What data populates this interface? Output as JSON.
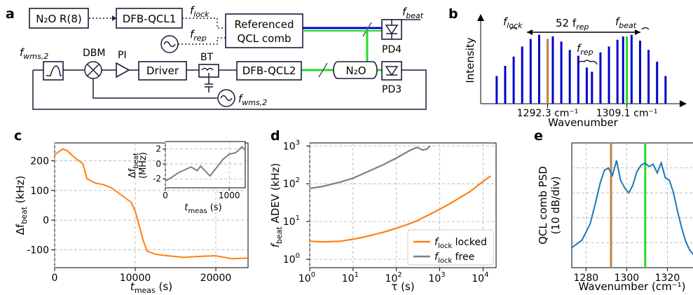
{
  "colors": {
    "orange": "#ff7f0e",
    "gray": "#7f7f7f",
    "blue": "#1f77b4",
    "navy": "#0000cc",
    "green": "#22dd22",
    "brown": "#c08040"
  },
  "panels": {
    "a": "a",
    "b": "b",
    "c": "c",
    "d": "d",
    "e": "e"
  },
  "schematic": {
    "n2o_ref": "N₂O R(8)",
    "qcl1": "DFB-QCL1",
    "comb_line1": "Referenced",
    "comb_line2": "QCL comb",
    "f_lock": "f",
    "f_lock_sub": "lock",
    "f_rep": "f",
    "f_rep_sub": "rep",
    "f_beat": "f",
    "f_beat_sub": "beat",
    "pd4": "PD4",
    "pd3": "PD3",
    "f_wms": "f",
    "f_wms_sub": "wms,2",
    "dbm": "DBM",
    "pi": "PI",
    "driver": "Driver",
    "bt": "BT",
    "qcl2": "DFB-QCL2",
    "n2o_cell": "N₂O",
    "f_wms2": "f",
    "f_wms2_sub": "wms,2"
  },
  "chart_data": [
    {
      "panel": "b",
      "type": "bar",
      "ylabel": "Intensity",
      "xlabel": "Wavenumber",
      "ticks": [
        {
          "x": 1292.3,
          "label": "1292.3 cm⁻¹"
        },
        {
          "x": 1309.1,
          "label": "1309.1 cm⁻¹"
        }
      ],
      "xlim": [
        1279,
        1320
      ],
      "ylim": [
        0,
        1
      ],
      "lines": [
        {
          "x": 1281.5,
          "h": 0.33,
          "c": "navy"
        },
        {
          "x": 1283.3,
          "h": 0.45,
          "c": "navy"
        },
        {
          "x": 1285.1,
          "h": 0.56,
          "c": "navy"
        },
        {
          "x": 1286.9,
          "h": 0.68,
          "c": "navy"
        },
        {
          "x": 1288.7,
          "h": 0.77,
          "c": "navy"
        },
        {
          "x": 1290.5,
          "h": 0.82,
          "c": "navy"
        },
        {
          "x": 1292.3,
          "h": 0.77,
          "c": "brown"
        },
        {
          "x": 1293.4,
          "h": 0.8,
          "c": "navy"
        },
        {
          "x": 1295.2,
          "h": 0.74,
          "c": "navy"
        },
        {
          "x": 1297.0,
          "h": 0.64,
          "c": "navy"
        },
        {
          "x": 1298.8,
          "h": 0.57,
          "c": "navy"
        },
        {
          "x": 1300.6,
          "h": 0.43,
          "c": "navy"
        },
        {
          "x": 1301.7,
          "h": 0.38,
          "c": "navy"
        },
        {
          "x": 1303.5,
          "h": 0.61,
          "c": "navy"
        },
        {
          "x": 1305.3,
          "h": 0.68,
          "c": "navy"
        },
        {
          "x": 1307.1,
          "h": 0.76,
          "c": "navy"
        },
        {
          "x": 1308.3,
          "h": 0.8,
          "c": "navy"
        },
        {
          "x": 1309.1,
          "h": 0.8,
          "c": "green"
        },
        {
          "x": 1310.1,
          "h": 0.82,
          "c": "navy"
        },
        {
          "x": 1311.9,
          "h": 0.75,
          "c": "navy"
        },
        {
          "x": 1313.7,
          "h": 0.64,
          "c": "navy"
        },
        {
          "x": 1315.5,
          "h": 0.5,
          "c": "navy"
        },
        {
          "x": 1317.3,
          "h": 0.33,
          "c": "navy"
        }
      ],
      "annotations": {
        "f_lock": "f",
        "f_lock_sub": "lock",
        "f_beat": "f",
        "f_beat_sub": "beat",
        "span": "52 f",
        "span_sub": "rep",
        "frep": "f",
        "frep_sub": "rep"
      }
    },
    {
      "panel": "c",
      "type": "line",
      "xlabel": "t",
      "xlabel_sub": "meas",
      "xlabel_unit": " (s)",
      "ylabel": "Δf",
      "ylabel_sub": "beat",
      "ylabel_unit": " (kHz)",
      "xlim": [
        0,
        24000
      ],
      "ylim": [
        -160,
        260
      ],
      "xticks": [
        0,
        10000,
        20000
      ],
      "yticks": [
        -100,
        0,
        100,
        200
      ],
      "yticklabels": [
        "-100",
        "0",
        "100",
        "200"
      ],
      "x": [
        0,
        1000,
        1500,
        2500,
        3500,
        4000,
        5000,
        6000,
        7000,
        8000,
        9000,
        9500,
        10000,
        10500,
        11000,
        11500,
        12500,
        14000,
        16000,
        18000,
        20000,
        22000,
        24000
      ],
      "y": [
        220,
        240,
        235,
        210,
        190,
        140,
        125,
        120,
        110,
        90,
        70,
        60,
        30,
        -20,
        -70,
        -105,
        -115,
        -120,
        -125,
        -122,
        -120,
        -130,
        -128
      ],
      "inset": {
        "xlabel": "t",
        "xlabel_sub": "meas",
        "xlabel_unit": " (s)",
        "ylabel": "Δf",
        "ylabel_sub": "beat",
        "ylabel_unit": "(MHz)",
        "xlim": [
          0,
          1250
        ],
        "ylim": [
          -3.2,
          3.0
        ],
        "xticks": [
          0,
          1000
        ],
        "yticks": [
          -2,
          0,
          2
        ],
        "x": [
          0,
          100,
          200,
          300,
          400,
          500,
          550,
          650,
          700,
          800,
          900,
          1000,
          1100,
          1200,
          1250
        ],
        "y": [
          -2.3,
          -1.8,
          -1.2,
          -0.8,
          -0.4,
          -0.9,
          -0.3,
          -1.2,
          -1.6,
          -0.5,
          0.6,
          1.3,
          1.5,
          2.3,
          1.8
        ]
      }
    },
    {
      "panel": "d",
      "type": "line",
      "xlabel": "τ (s)",
      "ylabel": "f",
      "ylabel_sub": "beat",
      "ylabel_unit": " ADEV (kHz)",
      "scale": "log-log",
      "xlim": [
        1,
        20000
      ],
      "ylim": [
        0.6,
        1200
      ],
      "xticks": [
        1,
        10,
        100,
        1000,
        10000
      ],
      "xticklabels": [
        {
          "b": "10",
          "e": "0"
        },
        {
          "b": "10",
          "e": "1"
        },
        {
          "b": "10",
          "e": "2"
        },
        {
          "b": "10",
          "e": "3"
        },
        {
          "b": "10",
          "e": "4"
        }
      ],
      "yticks": [
        1,
        10,
        100,
        1000
      ],
      "yticklabels": [
        {
          "b": "10",
          "e": "0"
        },
        {
          "b": "10",
          "e": "1"
        },
        {
          "b": "10",
          "e": "2"
        },
        {
          "b": "10",
          "e": "3"
        }
      ],
      "legend": "bottom-right",
      "series": [
        {
          "name": "f",
          "name_sub": "lock",
          "name_rest": " locked",
          "color": "orange",
          "x": [
            1,
            2,
            5,
            10,
            20,
            50,
            100,
            200,
            300,
            500,
            1000,
            2000,
            5000,
            10000,
            15000
          ],
          "y": [
            3,
            2.9,
            3.0,
            3.4,
            4.0,
            5.2,
            6.6,
            8.7,
            10.5,
            14,
            21,
            33,
            62,
            115,
            160
          ]
        },
        {
          "name": "f",
          "name_sub": "lock",
          "name_rest": " free",
          "color": "gray",
          "x": [
            1,
            2,
            5,
            10,
            20,
            50,
            100,
            200,
            300,
            400,
            500,
            600
          ],
          "y": [
            75,
            85,
            110,
            140,
            200,
            320,
            480,
            750,
            920,
            780,
            820,
            1000
          ]
        }
      ]
    },
    {
      "panel": "e",
      "type": "line",
      "xlabel": "Wavenumber (cm⁻¹)",
      "ylabel_line1": "QCL comb PSD",
      "ylabel_line2": "(10 dB/div)",
      "xlim": [
        1273,
        1335
      ],
      "ylim": [
        0,
        10
      ],
      "xticks": [
        1280,
        1300,
        1320
      ],
      "markers": [
        {
          "x": 1292.3,
          "color": "brown"
        },
        {
          "x": 1309.1,
          "color": "green"
        }
      ],
      "x": [
        1273,
        1278,
        1282,
        1285,
        1287,
        1289,
        1291,
        1293,
        1295,
        1297,
        1299,
        1301,
        1303,
        1305,
        1307,
        1309,
        1311,
        1313,
        1315,
        1317,
        1319,
        1321,
        1323,
        1325,
        1327,
        1329,
        1331,
        1333,
        1335
      ],
      "y": [
        1.6,
        2.2,
        3.5,
        5.4,
        6.8,
        7.8,
        8.0,
        7.4,
        8.6,
        7.0,
        6.4,
        6.0,
        6.6,
        7.7,
        8.2,
        8.4,
        8.1,
        8.3,
        7.6,
        8.4,
        7.2,
        7.0,
        6.0,
        4.5,
        3.2,
        2.1,
        1.4,
        1.0,
        0.8
      ]
    }
  ]
}
